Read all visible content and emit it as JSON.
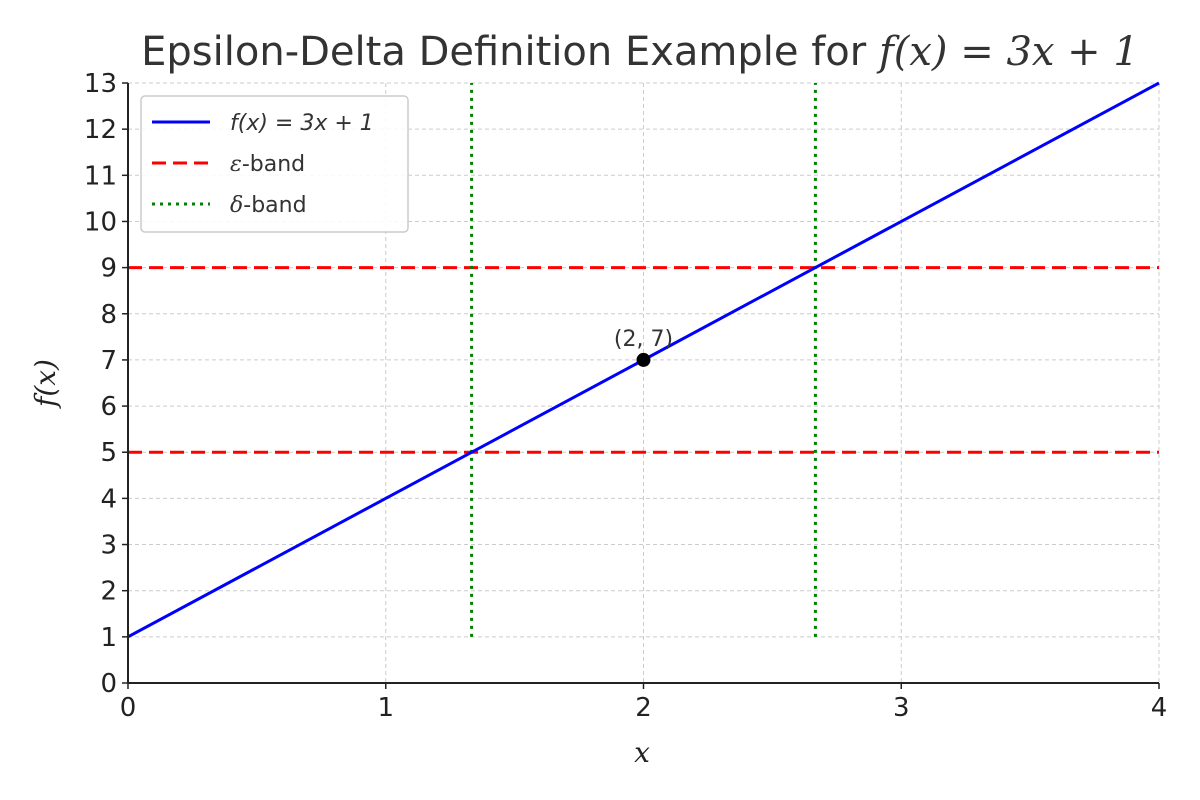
{
  "chart_data": {
    "type": "line",
    "title": {
      "text": "Epsilon-Delta Definition Example for ",
      "formula": "f(x) = 3x + 1"
    },
    "xlabel": "x",
    "ylabel": "f(x)",
    "xlim": [
      0,
      4
    ],
    "ylim": [
      0,
      13
    ],
    "xticks": [
      0,
      1,
      2,
      3,
      4
    ],
    "yticks": [
      0,
      1,
      2,
      3,
      4,
      5,
      6,
      7,
      8,
      9,
      10,
      11,
      12,
      13
    ],
    "grid": true,
    "legend_position": "top-left",
    "series": [
      {
        "name": "f(x) = 3x + 1",
        "kind": "line",
        "style": "solid",
        "color": "#0000ff",
        "x": [
          0,
          4
        ],
        "y": [
          1,
          13
        ]
      }
    ],
    "epsilon_band": {
      "name": "ε-band",
      "style": "dashed",
      "color": "#ff0000",
      "y": [
        5,
        9
      ]
    },
    "delta_band": {
      "name": "δ-band",
      "style": "dotted",
      "color": "#008000",
      "x": [
        1.333,
        2.667
      ],
      "y_range": [
        1,
        13
      ]
    },
    "point": {
      "x": 2,
      "y": 7,
      "label": "(2, 7)",
      "color": "#000000"
    }
  }
}
